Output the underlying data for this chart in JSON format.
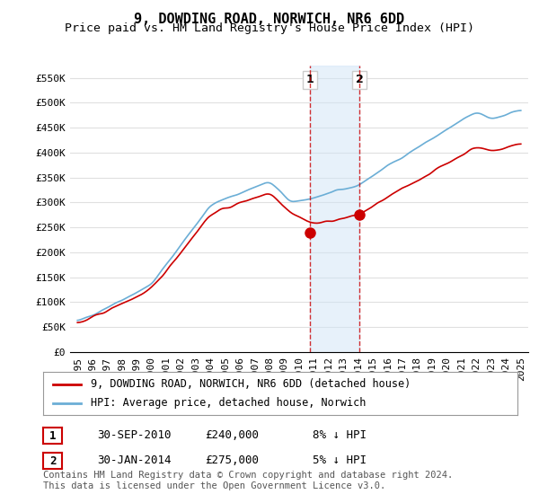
{
  "title": "9, DOWDING ROAD, NORWICH, NR6 6DD",
  "subtitle": "Price paid vs. HM Land Registry's House Price Index (HPI)",
  "ylabel_ticks": [
    "£0",
    "£50K",
    "£100K",
    "£150K",
    "£200K",
    "£250K",
    "£300K",
    "£350K",
    "£400K",
    "£450K",
    "£500K",
    "£550K"
  ],
  "ytick_values": [
    0,
    50000,
    100000,
    150000,
    200000,
    250000,
    300000,
    350000,
    400000,
    450000,
    500000,
    550000
  ],
  "ylim": [
    0,
    575000
  ],
  "xlim_start": 1995.0,
  "xlim_end": 2025.5,
  "sale1_date": 2010.75,
  "sale1_price": 240000,
  "sale1_label": "1",
  "sale1_text": "30-SEP-2010    £240,000    8% ↓ HPI",
  "sale2_date": 2014.08,
  "sale2_price": 275000,
  "sale2_label": "2",
  "sale2_text": "30-JAN-2014    £275,000    5% ↓ HPI",
  "hpi_line_color": "#6baed6",
  "property_line_color": "#cc0000",
  "shade_color": "#d0e4f7",
  "shade_alpha": 0.5,
  "shade_xmin": 2010.75,
  "shade_xmax": 2014.08,
  "legend_label1": "9, DOWDING ROAD, NORWICH, NR6 6DD (detached house)",
  "legend_label2": "HPI: Average price, detached house, Norwich",
  "footer_text": "Contains HM Land Registry data © Crown copyright and database right 2024.\nThis data is licensed under the Open Government Licence v3.0.",
  "background_color": "#ffffff",
  "grid_color": "#e0e0e0",
  "title_fontsize": 11,
  "subtitle_fontsize": 9.5,
  "tick_fontsize": 8,
  "xticks": [
    1995,
    1996,
    1997,
    1998,
    1999,
    2000,
    2001,
    2002,
    2003,
    2004,
    2005,
    2006,
    2007,
    2008,
    2009,
    2010,
    2011,
    2012,
    2013,
    2014,
    2015,
    2016,
    2017,
    2018,
    2019,
    2020,
    2021,
    2022,
    2023,
    2024,
    2025
  ]
}
